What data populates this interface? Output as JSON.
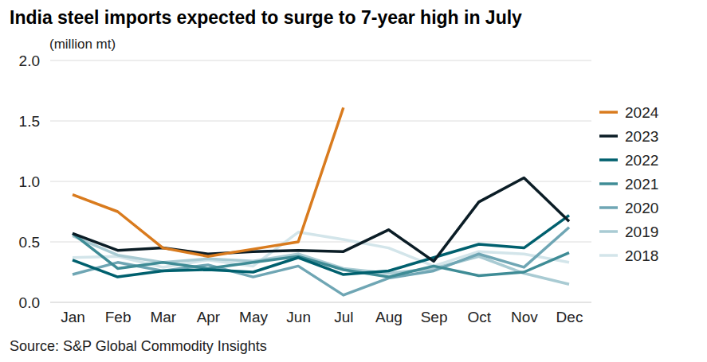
{
  "chart_data": {
    "type": "line",
    "title": "India steel imports expected to surge to 7-year high in July",
    "subtitle": "(million mt)",
    "source": "Source: S&P Global Commodity Insights",
    "categories": [
      "Jan",
      "Feb",
      "Mar",
      "Apr",
      "May",
      "Jun",
      "Jul",
      "Aug",
      "Sep",
      "Oct",
      "Nov",
      "Dec"
    ],
    "series": [
      {
        "name": "2024",
        "color": "#d97b1e",
        "values": [
          0.89,
          0.75,
          0.45,
          0.38,
          0.44,
          0.5,
          1.61,
          null,
          null,
          null,
          null,
          null
        ]
      },
      {
        "name": "2023",
        "color": "#0b1d26",
        "values": [
          0.57,
          0.43,
          0.45,
          0.4,
          0.42,
          0.43,
          0.42,
          0.6,
          0.34,
          0.83,
          1.03,
          0.67
        ]
      },
      {
        "name": "2022",
        "color": "#00606e",
        "values": [
          0.35,
          0.21,
          0.26,
          0.27,
          0.25,
          0.37,
          0.23,
          0.26,
          0.37,
          0.48,
          0.45,
          0.72
        ]
      },
      {
        "name": "2021",
        "color": "#3f8c96",
        "values": [
          0.57,
          0.28,
          0.33,
          0.28,
          0.33,
          0.38,
          0.27,
          0.21,
          0.3,
          0.22,
          0.25,
          0.41
        ]
      },
      {
        "name": "2020",
        "color": "#6fa6b4",
        "values": [
          0.23,
          0.33,
          0.26,
          0.31,
          0.21,
          0.3,
          0.06,
          0.2,
          0.26,
          0.4,
          0.29,
          0.62
        ]
      },
      {
        "name": "2019",
        "color": "#a9cbd3",
        "values": [
          0.55,
          0.39,
          0.33,
          0.36,
          0.34,
          0.4,
          0.28,
          0.24,
          0.28,
          0.38,
          0.24,
          0.15
        ]
      },
      {
        "name": "2018",
        "color": "#d3e5ea",
        "values": [
          0.37,
          0.38,
          0.29,
          0.35,
          0.3,
          0.58,
          0.52,
          0.45,
          0.3,
          0.42,
          0.4,
          0.33
        ]
      }
    ],
    "ylim": [
      0,
      2
    ],
    "yticks": [
      {
        "value": 0,
        "label": "0.0"
      },
      0.5,
      {
        "value": 1,
        "label": "1.0"
      },
      1.5,
      {
        "value": 2,
        "label": "2.0"
      }
    ],
    "grid": true,
    "legend": "right"
  }
}
